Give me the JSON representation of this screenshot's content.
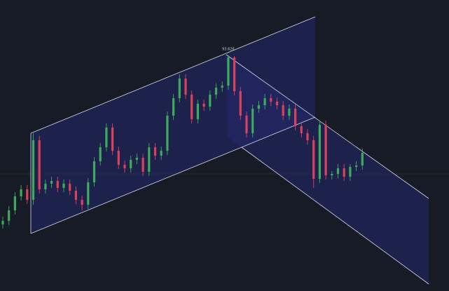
{
  "chart_data": {
    "type": "candlestick",
    "annotation": "93.626",
    "ylim": [
      91.945,
      94.02
    ],
    "up_color": "#3eaa5c",
    "down_color": "#d8435a",
    "open": [
      92.42,
      92.445,
      92.52,
      92.62,
      92.67,
      92.595,
      93.02,
      92.67,
      92.71,
      92.73,
      92.68,
      92.71,
      92.66,
      92.595,
      92.56,
      92.72,
      92.87,
      92.97,
      93.11,
      92.945,
      92.845,
      92.82,
      92.88,
      92.895,
      92.795,
      92.97,
      92.91,
      92.945,
      93.195,
      93.32,
      93.46,
      93.345,
      93.17,
      93.28,
      93.26,
      93.345,
      93.395,
      93.41,
      93.61,
      93.37,
      93.195,
      93.07,
      93.245,
      93.27,
      93.32,
      93.295,
      93.27,
      93.195,
      93.245,
      93.12,
      93.07,
      93.02,
      92.745,
      93.13,
      92.77,
      92.78,
      92.82,
      92.76,
      92.83,
      92.84
    ],
    "high": [
      92.475,
      92.55,
      92.65,
      92.7,
      92.7,
      93.07,
      93.05,
      92.74,
      92.76,
      92.76,
      92.74,
      92.74,
      92.69,
      92.625,
      92.75,
      92.9,
      93.0,
      93.14,
      93.14,
      92.975,
      92.875,
      92.91,
      92.925,
      92.925,
      93.0,
      93.0,
      92.975,
      93.225,
      93.35,
      93.49,
      93.49,
      93.375,
      93.31,
      93.31,
      93.375,
      93.425,
      93.44,
      93.626,
      93.62,
      93.4,
      93.225,
      93.275,
      93.3,
      93.35,
      93.35,
      93.325,
      93.3,
      93.275,
      93.275,
      93.15,
      93.1,
      93.05,
      93.16,
      93.16,
      92.8,
      92.85,
      92.85,
      92.85,
      92.87,
      92.96
    ],
    "low": [
      92.39,
      92.415,
      92.49,
      92.59,
      92.565,
      92.56,
      92.64,
      92.64,
      92.68,
      92.65,
      92.65,
      92.63,
      92.565,
      92.52,
      92.53,
      92.69,
      92.84,
      92.94,
      92.915,
      92.815,
      92.79,
      92.79,
      92.85,
      92.765,
      92.765,
      92.88,
      92.88,
      92.915,
      93.165,
      93.29,
      93.315,
      93.14,
      93.14,
      93.23,
      93.23,
      93.315,
      93.365,
      93.38,
      93.34,
      93.165,
      93.04,
      93.04,
      93.215,
      93.24,
      93.265,
      93.24,
      93.165,
      93.165,
      93.09,
      93.04,
      92.99,
      92.68,
      92.715,
      92.74,
      92.74,
      92.75,
      92.73,
      92.73,
      92.8,
      92.81
    ],
    "close": [
      92.445,
      92.52,
      92.62,
      92.67,
      92.595,
      93.02,
      92.67,
      92.71,
      92.73,
      92.68,
      92.71,
      92.66,
      92.595,
      92.56,
      92.72,
      92.87,
      92.97,
      93.11,
      92.945,
      92.845,
      92.82,
      92.88,
      92.895,
      92.795,
      92.97,
      92.91,
      92.945,
      93.195,
      93.32,
      93.46,
      93.345,
      93.17,
      93.28,
      93.26,
      93.345,
      93.395,
      93.41,
      93.61,
      93.37,
      93.195,
      93.07,
      93.245,
      93.27,
      93.32,
      93.295,
      93.27,
      93.195,
      93.245,
      93.12,
      93.07,
      93.02,
      92.745,
      93.13,
      92.77,
      92.78,
      92.82,
      92.76,
      92.83,
      92.84,
      92.93
    ]
  }
}
